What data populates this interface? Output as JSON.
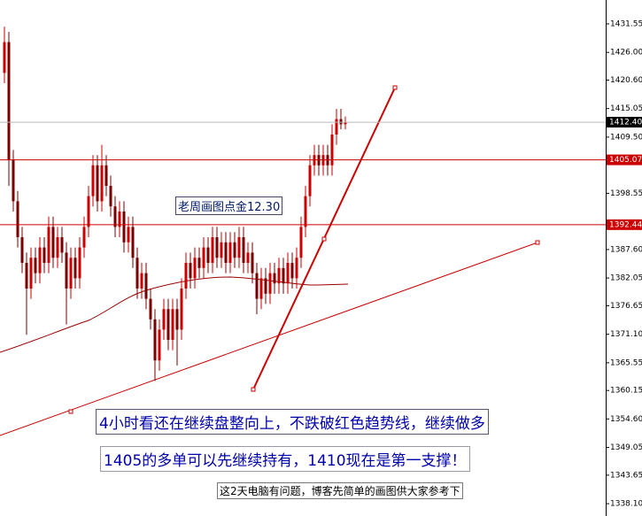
{
  "chart_data": {
    "type": "candlestick",
    "ylim": [
      1335.7,
      1436.2
    ],
    "yticks": [
      1431.55,
      {
        "value": 1426.0,
        "label": "1426.00"
      },
      {
        "value": 1420.6,
        "label": "1420.60"
      },
      1415.05,
      {
        "value": 1409.5,
        "label": "1409.50"
      },
      1398.55,
      {
        "value": 1387.6,
        "label": "1387.60"
      },
      1382.05,
      1376.65,
      {
        "value": 1371.1,
        "label": "1371.10"
      },
      1365.55,
      1360.15,
      {
        "value": 1354.6,
        "label": "1354.60"
      },
      1349.05,
      1343.65,
      {
        "value": 1338.1,
        "label": "1338.10"
      }
    ],
    "up_color": "#cc0000",
    "down_color": "#7a0000",
    "open": [
      1422,
      1428,
      1405,
      1397,
      1390,
      1385,
      1380,
      1386,
      1383,
      1388,
      1385,
      1392,
      1386,
      1390,
      1387,
      1380,
      1386,
      1382,
      1388,
      1392,
      1398,
      1404,
      1397,
      1404,
      1400,
      1396,
      1392,
      1395,
      1389,
      1392,
      1386,
      1380,
      1383,
      1378,
      1374,
      1366,
      1372,
      1376,
      1370,
      1376,
      1372,
      1380,
      1385,
      1382,
      1386,
      1384,
      1388,
      1385,
      1390,
      1386,
      1389,
      1385,
      1389,
      1386,
      1390,
      1385,
      1387,
      1383,
      1378,
      1382,
      1379,
      1383,
      1381,
      1384,
      1381,
      1385,
      1382,
      1386,
      1392,
      1398,
      1404,
      1406,
      1404,
      1406,
      1404,
      1410,
      1413,
      1412
    ],
    "high": [
      1431,
      1430,
      1407,
      1399,
      1392,
      1387,
      1388,
      1388,
      1390,
      1390,
      1394,
      1394,
      1392,
      1392,
      1389,
      1388,
      1388,
      1390,
      1394,
      1400,
      1406,
      1406,
      1408,
      1406,
      1402,
      1398,
      1397,
      1397,
      1394,
      1394,
      1388,
      1385,
      1385,
      1380,
      1376,
      1374,
      1378,
      1378,
      1378,
      1378,
      1382,
      1387,
      1387,
      1388,
      1388,
      1390,
      1390,
      1392,
      1392,
      1391,
      1391,
      1391,
      1391,
      1392,
      1392,
      1389,
      1389,
      1385,
      1384,
      1384,
      1385,
      1385,
      1386,
      1386,
      1387,
      1387,
      1388,
      1394,
      1400,
      1406,
      1408,
      1408,
      1408,
      1408,
      1412,
      1415,
      1415,
      1413.5
    ],
    "low": [
      1420,
      1400,
      1395,
      1388,
      1383,
      1371,
      1378,
      1381,
      1381,
      1383,
      1383,
      1384,
      1384,
      1385,
      1373,
      1378,
      1380,
      1380,
      1386,
      1390,
      1396,
      1395,
      1395,
      1398,
      1394,
      1390,
      1390,
      1387,
      1387,
      1384,
      1378,
      1378,
      1376,
      1372,
      1362,
      1364,
      1370,
      1368,
      1368,
      1365,
      1370,
      1378,
      1380,
      1380,
      1382,
      1382,
      1383,
      1383,
      1384,
      1384,
      1383,
      1383,
      1384,
      1384,
      1383,
      1383,
      1381,
      1375,
      1376,
      1377,
      1377,
      1379,
      1379,
      1379,
      1379,
      1380,
      1380,
      1384,
      1390,
      1396,
      1402,
      1402,
      1402,
      1402,
      1402,
      1408,
      1411,
      1411
    ],
    "close": [
      1428,
      1405,
      1397,
      1390,
      1385,
      1380,
      1386,
      1383,
      1388,
      1385,
      1392,
      1386,
      1390,
      1387,
      1380,
      1386,
      1382,
      1388,
      1392,
      1398,
      1404,
      1397,
      1404,
      1400,
      1396,
      1392,
      1395,
      1389,
      1392,
      1386,
      1380,
      1383,
      1378,
      1374,
      1366,
      1372,
      1376,
      1370,
      1376,
      1372,
      1380,
      1385,
      1382,
      1386,
      1384,
      1388,
      1385,
      1390,
      1386,
      1389,
      1385,
      1389,
      1386,
      1390,
      1385,
      1387,
      1383,
      1378,
      1382,
      1379,
      1383,
      1381,
      1384,
      1381,
      1385,
      1382,
      1386,
      1392,
      1398,
      1404,
      1406,
      1404,
      1406,
      1404,
      1410,
      1413,
      1412,
      1412.4
    ],
    "price_lines": [
      {
        "value": 1405.07,
        "color": "#cc0000"
      },
      {
        "value": 1392.44,
        "color": "#cc0000"
      }
    ],
    "current_price": {
      "value": 1412.4,
      "label": "1412.40"
    },
    "annotations": [
      "老周画图点金12.30",
      "4小时看还在继续盘整向上，不跌破红色趋势线，继续做多",
      "1405的多单可以先继续持有，1410现在是第一支撑！",
      "这2天电脑有问题，博客先简单的画图供大家参考下"
    ]
  }
}
